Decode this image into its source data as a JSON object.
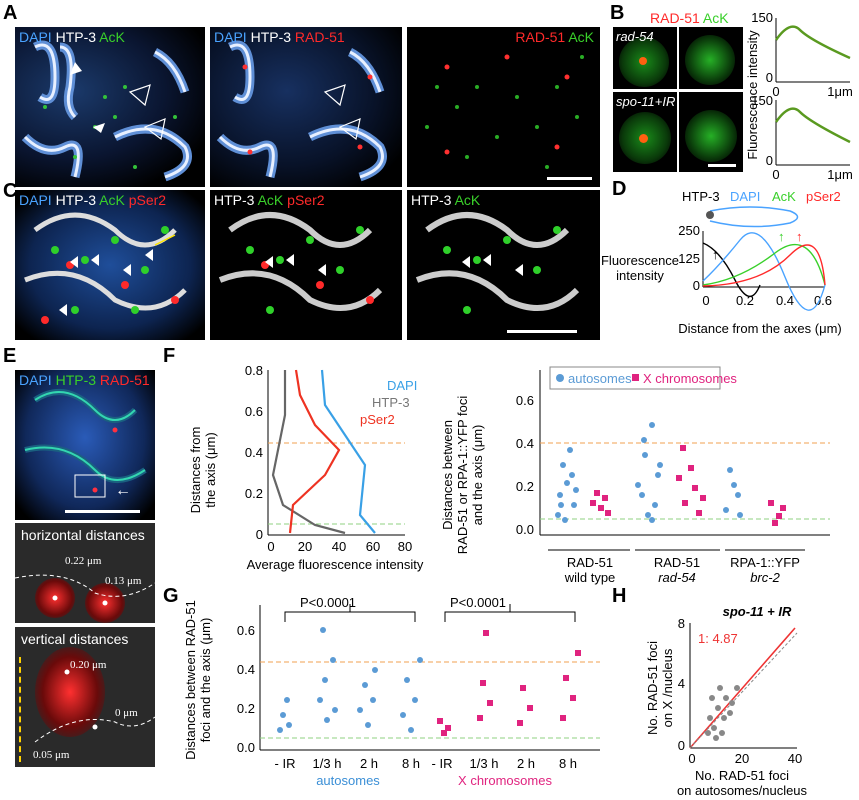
{
  "panels": {
    "A": {
      "letter": "A",
      "img1": {
        "labels": [
          "DAPI",
          "HTP-3",
          "AcK"
        ]
      },
      "img2": {
        "labels": [
          "DAPI",
          "HTP-3",
          "RAD-51"
        ]
      },
      "img3": {
        "labels": [
          "RAD-51",
          "AcK"
        ]
      }
    },
    "B": {
      "letter": "B",
      "header": [
        "RAD-51",
        "AcK"
      ],
      "row1": "rad-54",
      "row2": "spo-11+IR",
      "ylabel": "Fluorescence intensity",
      "yticks": [
        "150",
        "0"
      ],
      "xticks": [
        "0",
        "1μm"
      ]
    },
    "C": {
      "letter": "C",
      "img1": [
        "DAPI",
        "HTP-3",
        "AcK",
        "pSer2"
      ],
      "img2": [
        "HTP-3",
        "AcK",
        "pSer2"
      ],
      "img3": [
        "HTP-3",
        "AcK"
      ]
    },
    "D": {
      "letter": "D",
      "legend": [
        "HTP-3",
        "DAPI",
        "AcK",
        "pSer2"
      ],
      "ylabel": [
        "Fluorescence",
        "intensity"
      ],
      "xlabel": "Distance from the axes (μm)",
      "yticks": [
        "250",
        "125",
        "0"
      ],
      "xticks": [
        "0",
        "0.2",
        "0.4",
        "0.6"
      ]
    },
    "E": {
      "letter": "E",
      "labels": [
        "DAPI",
        "HTP-3",
        "RAD-51"
      ],
      "horizontal": "horizontal distances",
      "h1": "0.22 μm",
      "h2": "0.13 μm",
      "vertical": "vertical distances",
      "v1": "0.20 μm",
      "v2": "0 μm",
      "v3": "0.05 μm"
    },
    "F": {
      "letter": "F",
      "left_ylabel": [
        "Distances from",
        "the axis (μm)"
      ],
      "left_xlabel": "Average fluorescence intensity",
      "left_yticks": [
        "0.8",
        "0.6",
        "0.4",
        "0.2",
        "0"
      ],
      "left_xticks": [
        "0",
        "20",
        "40",
        "60",
        "80"
      ],
      "legend": [
        "DAPI",
        "HTP-3",
        "pSer2"
      ],
      "right_ylabel": [
        "Distances between",
        "RAD-51 or RPA-1::YFP foci",
        "and the axis (μm)"
      ],
      "right_yticks": [
        "0.6",
        "0.4",
        "0.2",
        "0.0"
      ],
      "legend2": [
        "autosomes",
        "X chromosomes"
      ],
      "groups": [
        {
          "line1": "RAD-51",
          "line2": "wild type"
        },
        {
          "line1": "RAD-51",
          "line2": "rad-54"
        },
        {
          "line1": "RPA-1::YFP",
          "line2": "brc-2"
        }
      ]
    },
    "G": {
      "letter": "G",
      "ylabel": [
        "Distances between RAD-51",
        "foci and the axis (μm)"
      ],
      "yticks": [
        "0.6",
        "0.4",
        "0.2",
        "0.0"
      ],
      "xticks": [
        "- IR",
        "1/3 h",
        "2 h",
        "8 h",
        "- IR",
        "1/3 h",
        "2 h",
        "8 h"
      ],
      "pval": "P<0.0001",
      "group1": "autosomes",
      "group2": "X chromosomes"
    },
    "H": {
      "letter": "H",
      "title": "spo-11 + IR",
      "ratio": "1: 4.87",
      "ylabel": [
        "No. RAD-51 foci",
        "on X /nucleus"
      ],
      "xlabel": [
        "No. RAD-51 foci",
        "on autosomes/nucleus"
      ],
      "yticks": [
        "8",
        "4",
        "0"
      ],
      "xticks": [
        "0",
        "20",
        "40"
      ]
    }
  },
  "colors": {
    "blue": "#4aa3ff",
    "green": "#39d02a",
    "red": "#ff2a2a",
    "magenta": "#e0237f",
    "autosome_dot": "#5b9bd5",
    "orange_dash": "#f0a050",
    "green_dash": "#8fd080",
    "grey": "#777777"
  }
}
